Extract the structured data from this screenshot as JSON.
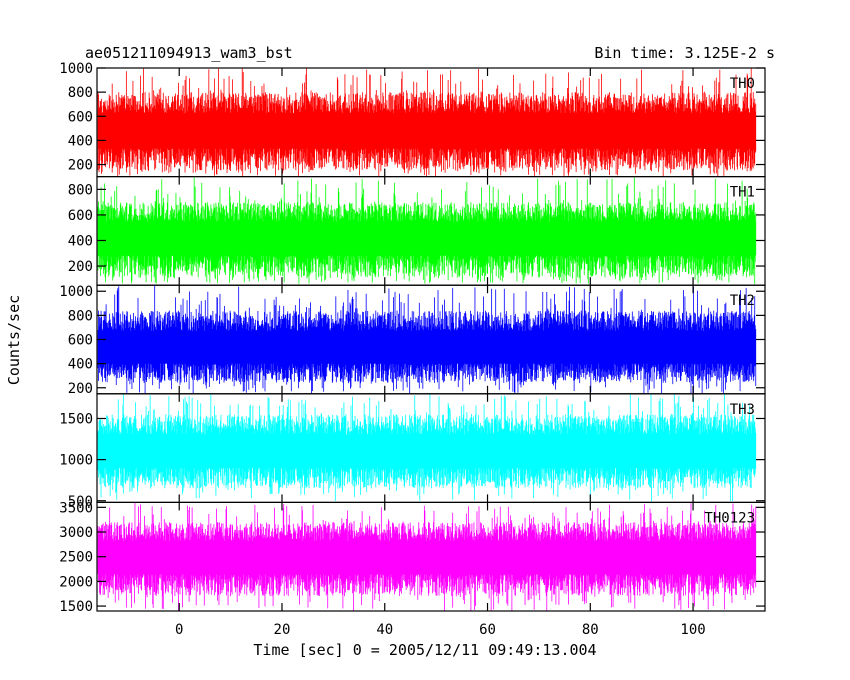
{
  "chart_data": {
    "type": "line",
    "title": "ae051211094913_wam3_bst",
    "subtitle": "Bin time: 3.125E-2 s",
    "xlabel": "Time [sec] 0 = 2005/12/11 09:49:13.004",
    "ylabel": "Counts/sec",
    "xlim": [
      -16,
      114
    ],
    "x_range_of_data": [
      -15.8,
      112.2
    ],
    "x_ticks": [
      0,
      20,
      40,
      60,
      80,
      100
    ],
    "x_tick_labels": [
      "0",
      "20",
      "40",
      "60",
      "80",
      "100"
    ],
    "bin_time": 0.03125,
    "grid": false,
    "panels": [
      {
        "name": "TH0",
        "color": "#ff0000",
        "ylim": [
          100,
          1000
        ],
        "y_ticks": [
          200,
          400,
          600,
          800,
          1000
        ],
        "y_tick_labels": [
          "200",
          "400",
          "600",
          "800",
          "1000"
        ],
        "mean": 480,
        "band_low": 150,
        "band_high": 800,
        "min_dip": 100,
        "max_peak": 1000
      },
      {
        "name": "TH1",
        "color": "#00ff00",
        "ylim": [
          50,
          900
        ],
        "y_ticks": [
          200,
          400,
          600,
          800
        ],
        "y_tick_labels": [
          "200",
          "400",
          "600",
          "800"
        ],
        "mean": 420,
        "band_low": 110,
        "band_high": 700,
        "min_dip": 60,
        "max_peak": 900
      },
      {
        "name": "TH2",
        "color": "#0000ff",
        "ylim": [
          150,
          1050
        ],
        "y_ticks": [
          200,
          400,
          600,
          800,
          1000
        ],
        "y_tick_labels": [
          "200",
          "400",
          "600",
          "800",
          "1000"
        ],
        "mean": 530,
        "band_low": 240,
        "band_high": 840,
        "min_dip": 150,
        "max_peak": 1050
      },
      {
        "name": "TH3",
        "color": "#00ffff",
        "ylim": [
          480,
          1800
        ],
        "y_ticks": [
          500,
          1000,
          1500
        ],
        "y_tick_labels": [
          "500",
          "1000",
          "1500"
        ],
        "mean": 1100,
        "band_low": 650,
        "band_high": 1550,
        "min_dip": 490,
        "max_peak": 1800
      },
      {
        "name": "TH0123",
        "color": "#ff00ff",
        "ylim": [
          1400,
          3600
        ],
        "y_ticks": [
          1500,
          2000,
          2500,
          3000,
          3500
        ],
        "y_tick_labels": [
          "1500",
          "2000",
          "2500",
          "3000",
          "3500"
        ],
        "mean": 2500,
        "band_low": 1700,
        "band_high": 3200,
        "min_dip": 1400,
        "max_peak": 3600
      }
    ]
  }
}
